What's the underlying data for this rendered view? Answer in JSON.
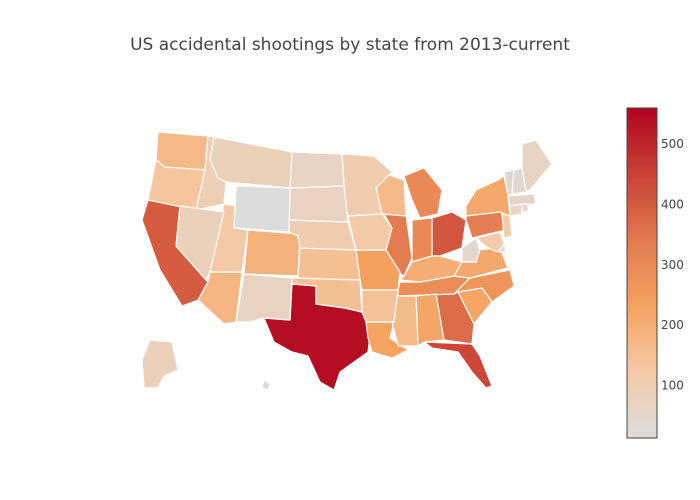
{
  "chart_data": {
    "type": "choropleth",
    "title": "US accidental shootings by state from 2013-current",
    "geo_scope": "usa",
    "colorscale": [
      "#dcdcdc",
      "#f5c9a5",
      "#f5a260",
      "#e37a4f",
      "#c94235",
      "#b2051e"
    ],
    "color_range": [
      13,
      560
    ],
    "colorbar": {
      "ticks": [
        100,
        200,
        300,
        400,
        500
      ],
      "placement": "right"
    },
    "states": [
      {
        "code": "TX",
        "value": 545
      },
      {
        "code": "FL",
        "value": 440
      },
      {
        "code": "CA",
        "value": 400
      },
      {
        "code": "OH",
        "value": 410
      },
      {
        "code": "GA",
        "value": 370
      },
      {
        "code": "PA",
        "value": 330
      },
      {
        "code": "IL",
        "value": 335
      },
      {
        "code": "MI",
        "value": 300
      },
      {
        "code": "IN",
        "value": 300
      },
      {
        "code": "TN",
        "value": 290
      },
      {
        "code": "NC",
        "value": 270
      },
      {
        "code": "NY",
        "value": 215
      },
      {
        "code": "LA",
        "value": 230
      },
      {
        "code": "MO",
        "value": 235
      },
      {
        "code": "AL",
        "value": 220
      },
      {
        "code": "SC",
        "value": 220
      },
      {
        "code": "VA",
        "value": 215
      },
      {
        "code": "KY",
        "value": 200
      },
      {
        "code": "CO",
        "value": 190
      },
      {
        "code": "AZ",
        "value": 175
      },
      {
        "code": "WA",
        "value": 170
      },
      {
        "code": "WI",
        "value": 165
      },
      {
        "code": "MS",
        "value": 165
      },
      {
        "code": "OK",
        "value": 150
      },
      {
        "code": "KS",
        "value": 150
      },
      {
        "code": "AR",
        "value": 145
      },
      {
        "code": "OR",
        "value": 135
      },
      {
        "code": "UT",
        "value": 120
      },
      {
        "code": "IA",
        "value": 120
      },
      {
        "code": "NE",
        "value": 105
      },
      {
        "code": "MN",
        "value": 105
      },
      {
        "code": "ID",
        "value": 90
      },
      {
        "code": "MT",
        "value": 80
      },
      {
        "code": "SD",
        "value": 70
      },
      {
        "code": "ND",
        "value": 60
      },
      {
        "code": "NV",
        "value": 80
      },
      {
        "code": "NM",
        "value": 65
      },
      {
        "code": "AK",
        "value": 80
      },
      {
        "code": "ME",
        "value": 60
      },
      {
        "code": "WV",
        "value": 40
      },
      {
        "code": "WY",
        "value": 15
      },
      {
        "code": "VT",
        "value": 40
      },
      {
        "code": "NH",
        "value": 35
      },
      {
        "code": "MA",
        "value": 60
      },
      {
        "code": "CT",
        "value": 60
      },
      {
        "code": "RI",
        "value": 20
      },
      {
        "code": "NJ",
        "value": 110
      },
      {
        "code": "DE",
        "value": 35
      },
      {
        "code": "MD",
        "value": 110
      },
      {
        "code": "HI",
        "value": 10
      }
    ]
  }
}
